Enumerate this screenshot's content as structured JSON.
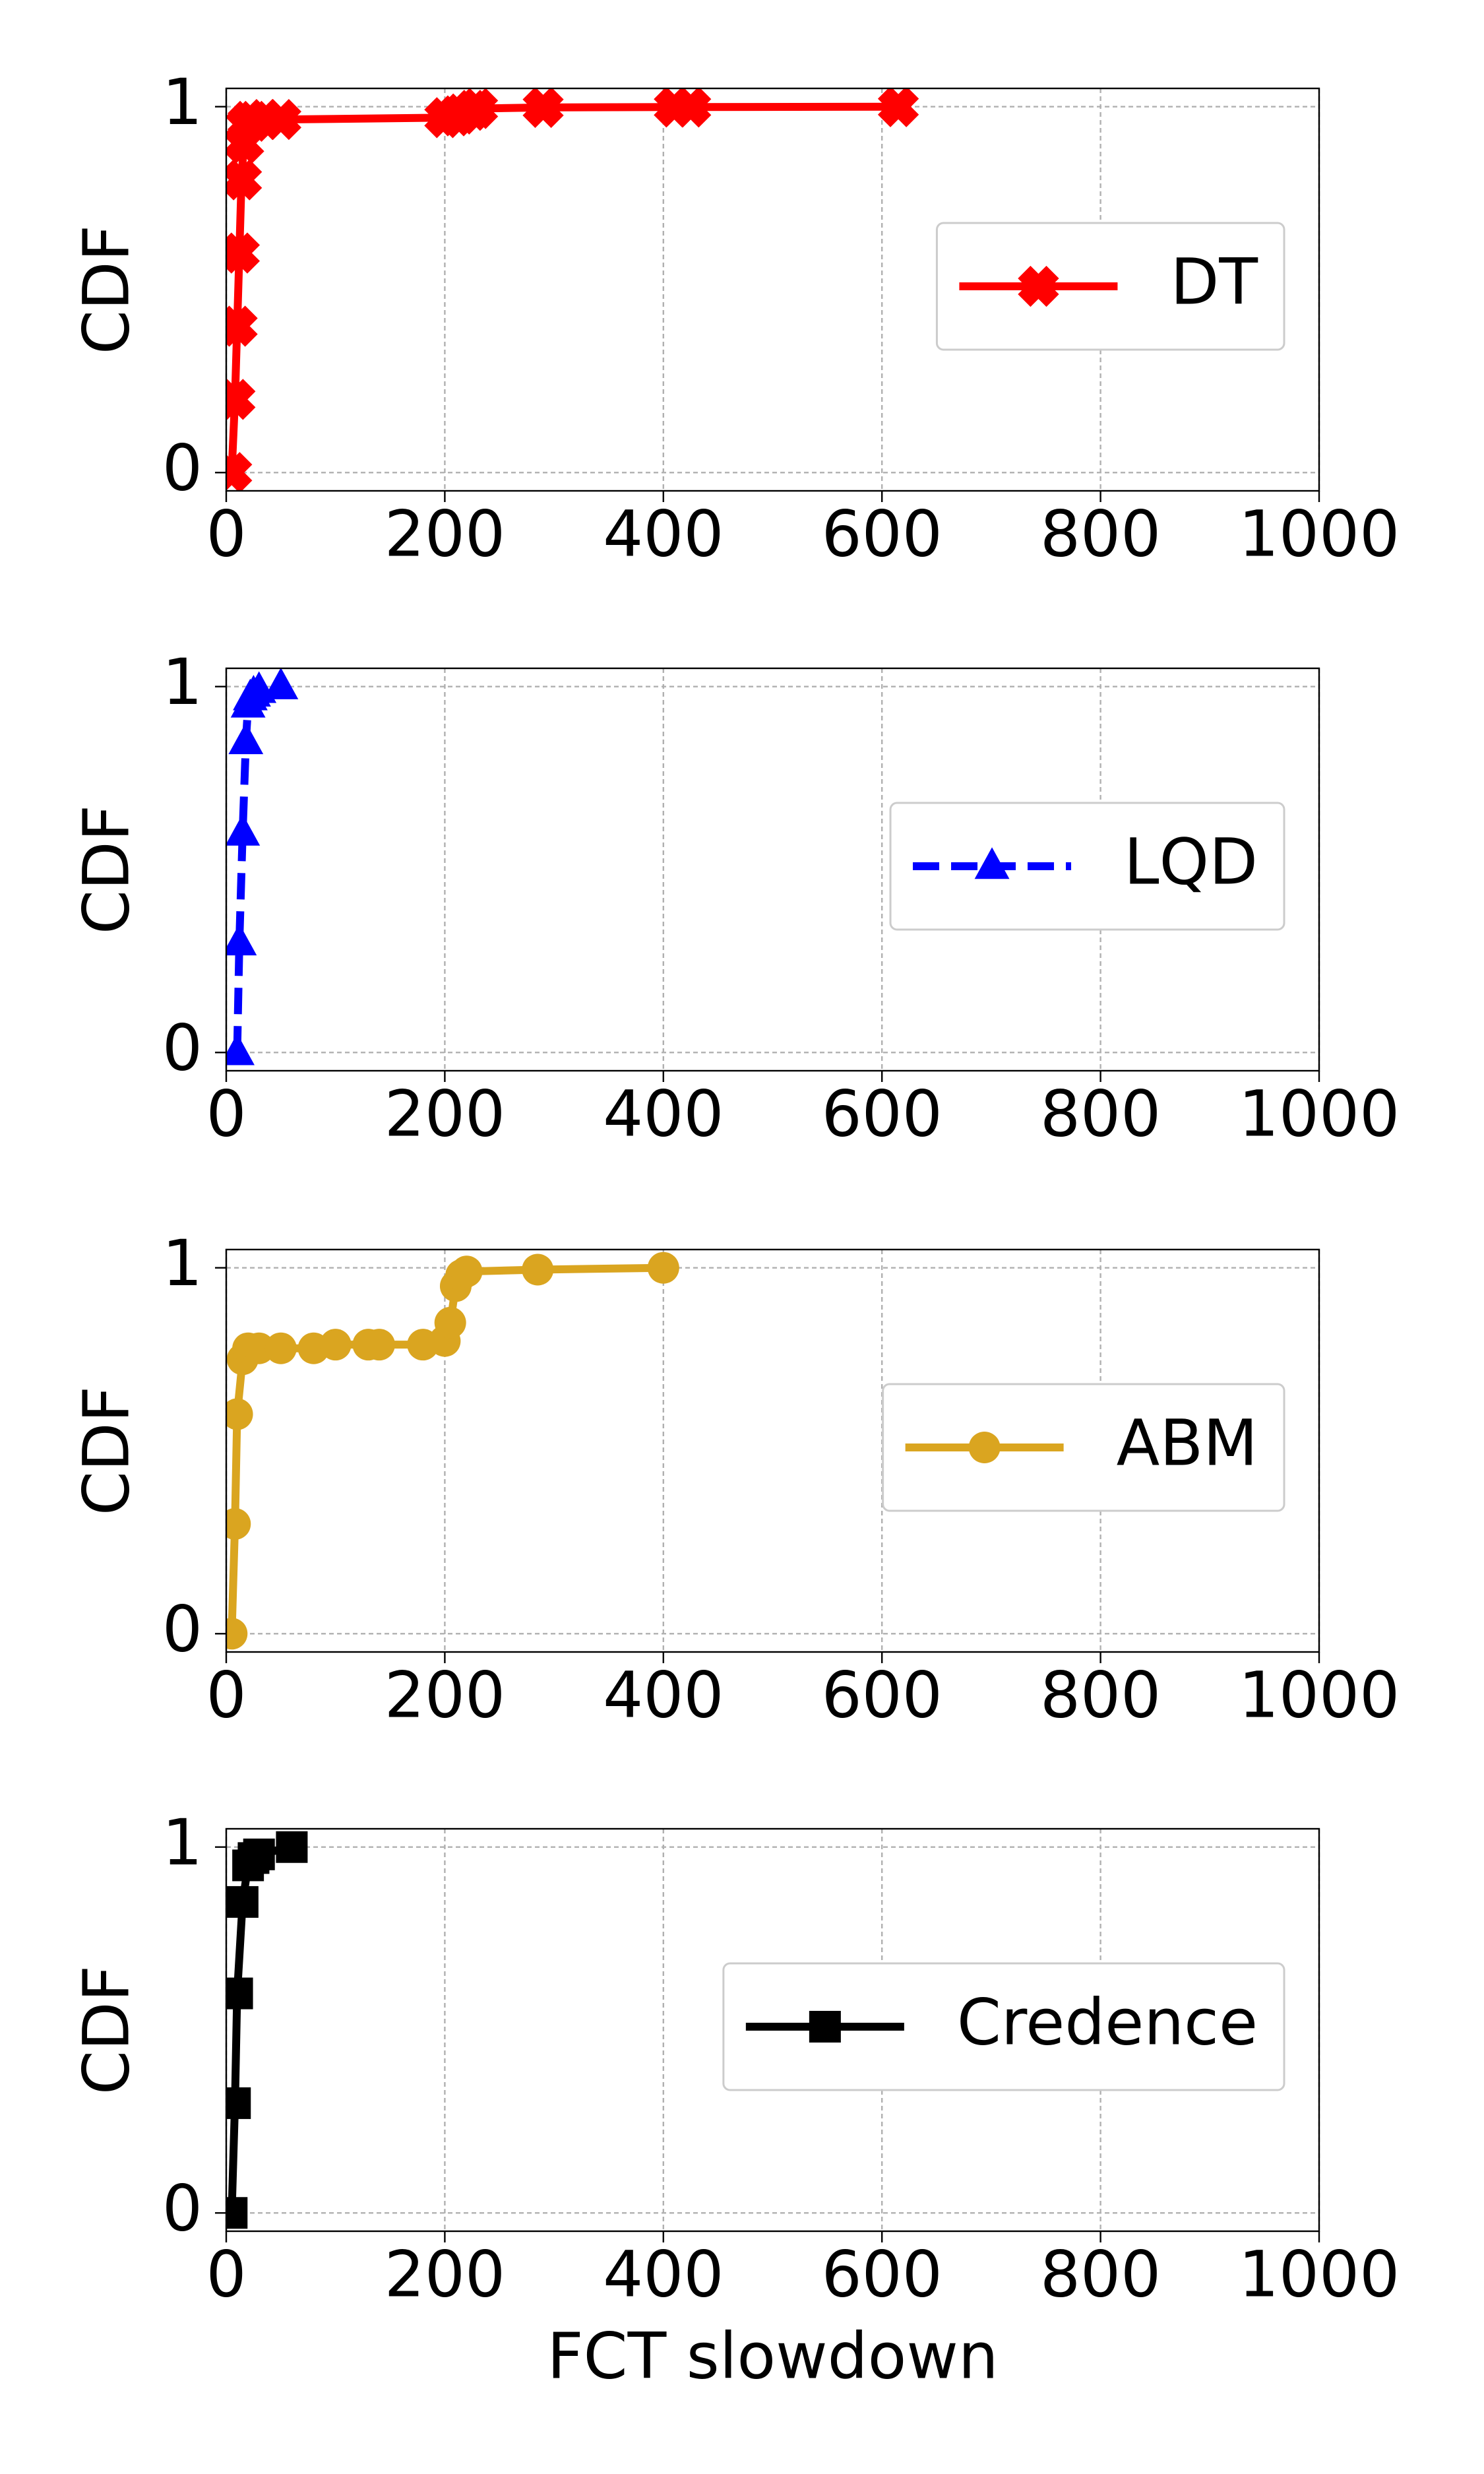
{
  "chart_data": [
    {
      "type": "line",
      "ylabel": "CDF",
      "xlim": [
        0,
        1000
      ],
      "ylim": [
        -0.05,
        1.05
      ],
      "xticks": [
        0,
        200,
        400,
        600,
        800,
        1000
      ],
      "yticks": [
        0,
        1
      ],
      "grid": true,
      "legend": "center right",
      "series": [
        {
          "name": "DT",
          "color": "#ff0000",
          "marker": "x",
          "linestyle": "solid",
          "x": [
            5,
            8,
            10,
            12,
            14,
            16,
            18,
            20,
            25,
            35,
            50,
            200,
            210,
            215,
            225,
            230,
            290,
            410,
            425,
            615
          ],
          "values": [
            0,
            0.2,
            0.4,
            0.6,
            0.8,
            0.9,
            0.95,
            0.96,
            0.96,
            0.965,
            0.965,
            0.97,
            0.975,
            0.98,
            0.99,
            0.995,
            0.998,
            0.999,
            0.999,
            1
          ]
        }
      ]
    },
    {
      "type": "line",
      "ylabel": "CDF",
      "xlim": [
        0,
        1000
      ],
      "ylim": [
        -0.05,
        1.05
      ],
      "xticks": [
        0,
        200,
        400,
        600,
        800,
        1000
      ],
      "yticks": [
        0,
        1
      ],
      "grid": true,
      "legend": "center right",
      "series": [
        {
          "name": "LQD",
          "color": "#0000ff",
          "marker": "^",
          "linestyle": "dashed",
          "x": [
            10,
            12,
            15,
            18,
            20,
            22,
            25,
            30,
            50
          ],
          "values": [
            0,
            0.3,
            0.6,
            0.85,
            0.95,
            0.97,
            0.98,
            0.99,
            1
          ]
        }
      ]
    },
    {
      "type": "line",
      "ylabel": "CDF",
      "xlim": [
        0,
        1000
      ],
      "ylim": [
        -0.05,
        1.05
      ],
      "xticks": [
        0,
        200,
        400,
        600,
        800,
        1000
      ],
      "yticks": [
        0,
        1
      ],
      "grid": true,
      "legend": "center right",
      "series": [
        {
          "name": "ABM",
          "color": "#daa520",
          "marker": "o",
          "linestyle": "solid",
          "x": [
            5,
            8,
            10,
            15,
            20,
            30,
            50,
            80,
            100,
            130,
            140,
            180,
            200,
            205,
            210,
            215,
            220,
            285,
            400
          ],
          "values": [
            0,
            0.3,
            0.6,
            0.75,
            0.78,
            0.78,
            0.78,
            0.78,
            0.79,
            0.79,
            0.79,
            0.79,
            0.8,
            0.85,
            0.95,
            0.98,
            0.99,
            0.995,
            1
          ]
        }
      ]
    },
    {
      "type": "line",
      "ylabel": "CDF",
      "xlabel": "FCT slowdown",
      "xlim": [
        0,
        1000
      ],
      "ylim": [
        -0.05,
        1.05
      ],
      "xticks": [
        0,
        200,
        400,
        600,
        800,
        1000
      ],
      "yticks": [
        0,
        1
      ],
      "grid": true,
      "legend": "center right",
      "series": [
        {
          "name": "Credence",
          "color": "#000000",
          "marker": "s",
          "linestyle": "solid",
          "x": [
            5,
            8,
            10,
            15,
            20,
            25,
            30,
            60
          ],
          "values": [
            0,
            0.3,
            0.6,
            0.85,
            0.95,
            0.97,
            0.98,
            1
          ]
        }
      ]
    }
  ]
}
